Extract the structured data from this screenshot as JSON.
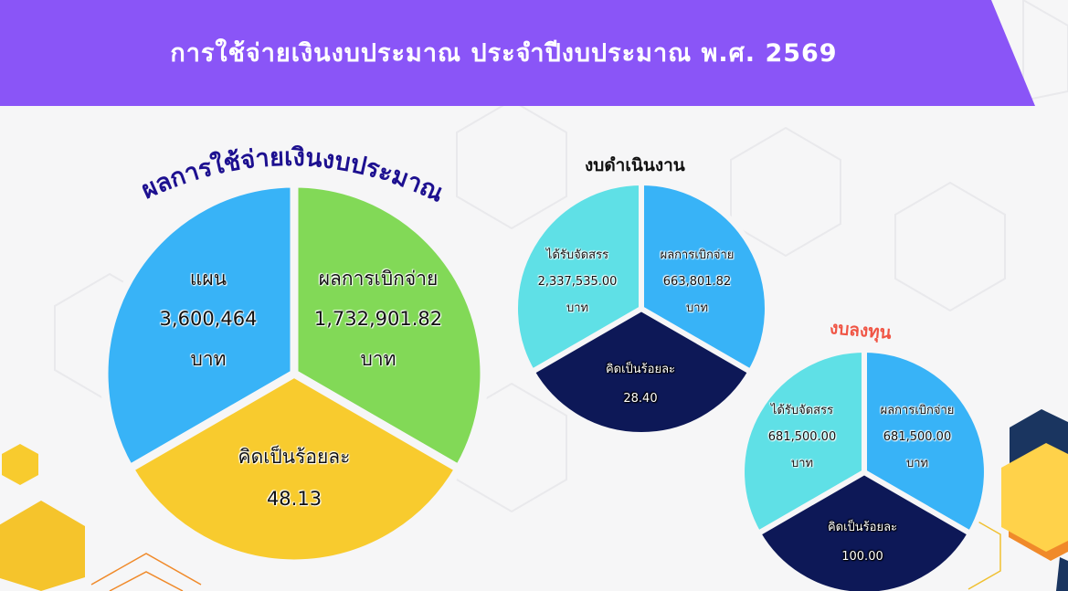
{
  "header": {
    "title": "การใช้จ่ายเงินงบประมาณ ประจำปีงบประมาณ พ.ศ. 2569"
  },
  "colors": {
    "header_bg": "#8a55f7",
    "plan": "#38b3f7",
    "disbursed": "#82d957",
    "percent_main": "#f8cb2e",
    "allocated": "#5fe0e6",
    "percent_sub": "#0d1857",
    "heading_main": "#1d1090",
    "heading_capital": "#f05545"
  },
  "main": {
    "heading": "ผลการใช้จ่ายเงินงบประมาณ",
    "plan": {
      "label": "แผน",
      "value": "3,600,464",
      "unit": "บาท"
    },
    "disbursed": {
      "label": "ผลการเบิกจ่าย",
      "value": "1,732,901.82",
      "unit": "บาท"
    },
    "percent": {
      "label": "คิดเป็นร้อยละ",
      "value": "48.13"
    }
  },
  "operating": {
    "heading": "งบดำเนินงาน",
    "allocated": {
      "label": "ได้รับจัดสรร",
      "value": "2,337,535.00",
      "unit": "บาท"
    },
    "disbursed": {
      "label": "ผลการเบิกจ่าย",
      "value": "663,801.82",
      "unit": "บาท"
    },
    "percent": {
      "label": "คิดเป็นร้อยละ",
      "value": "28.40"
    }
  },
  "capital": {
    "heading": "งบลงทุน",
    "allocated": {
      "label": "ได้รับจัดสรร",
      "value": "681,500.00",
      "unit": "บาท"
    },
    "disbursed": {
      "label": "ผลการเบิกจ่าย",
      "value": "681,500.00",
      "unit": "บาท"
    },
    "percent": {
      "label": "คิดเป็นร้อยละ",
      "value": "100.00"
    }
  }
}
